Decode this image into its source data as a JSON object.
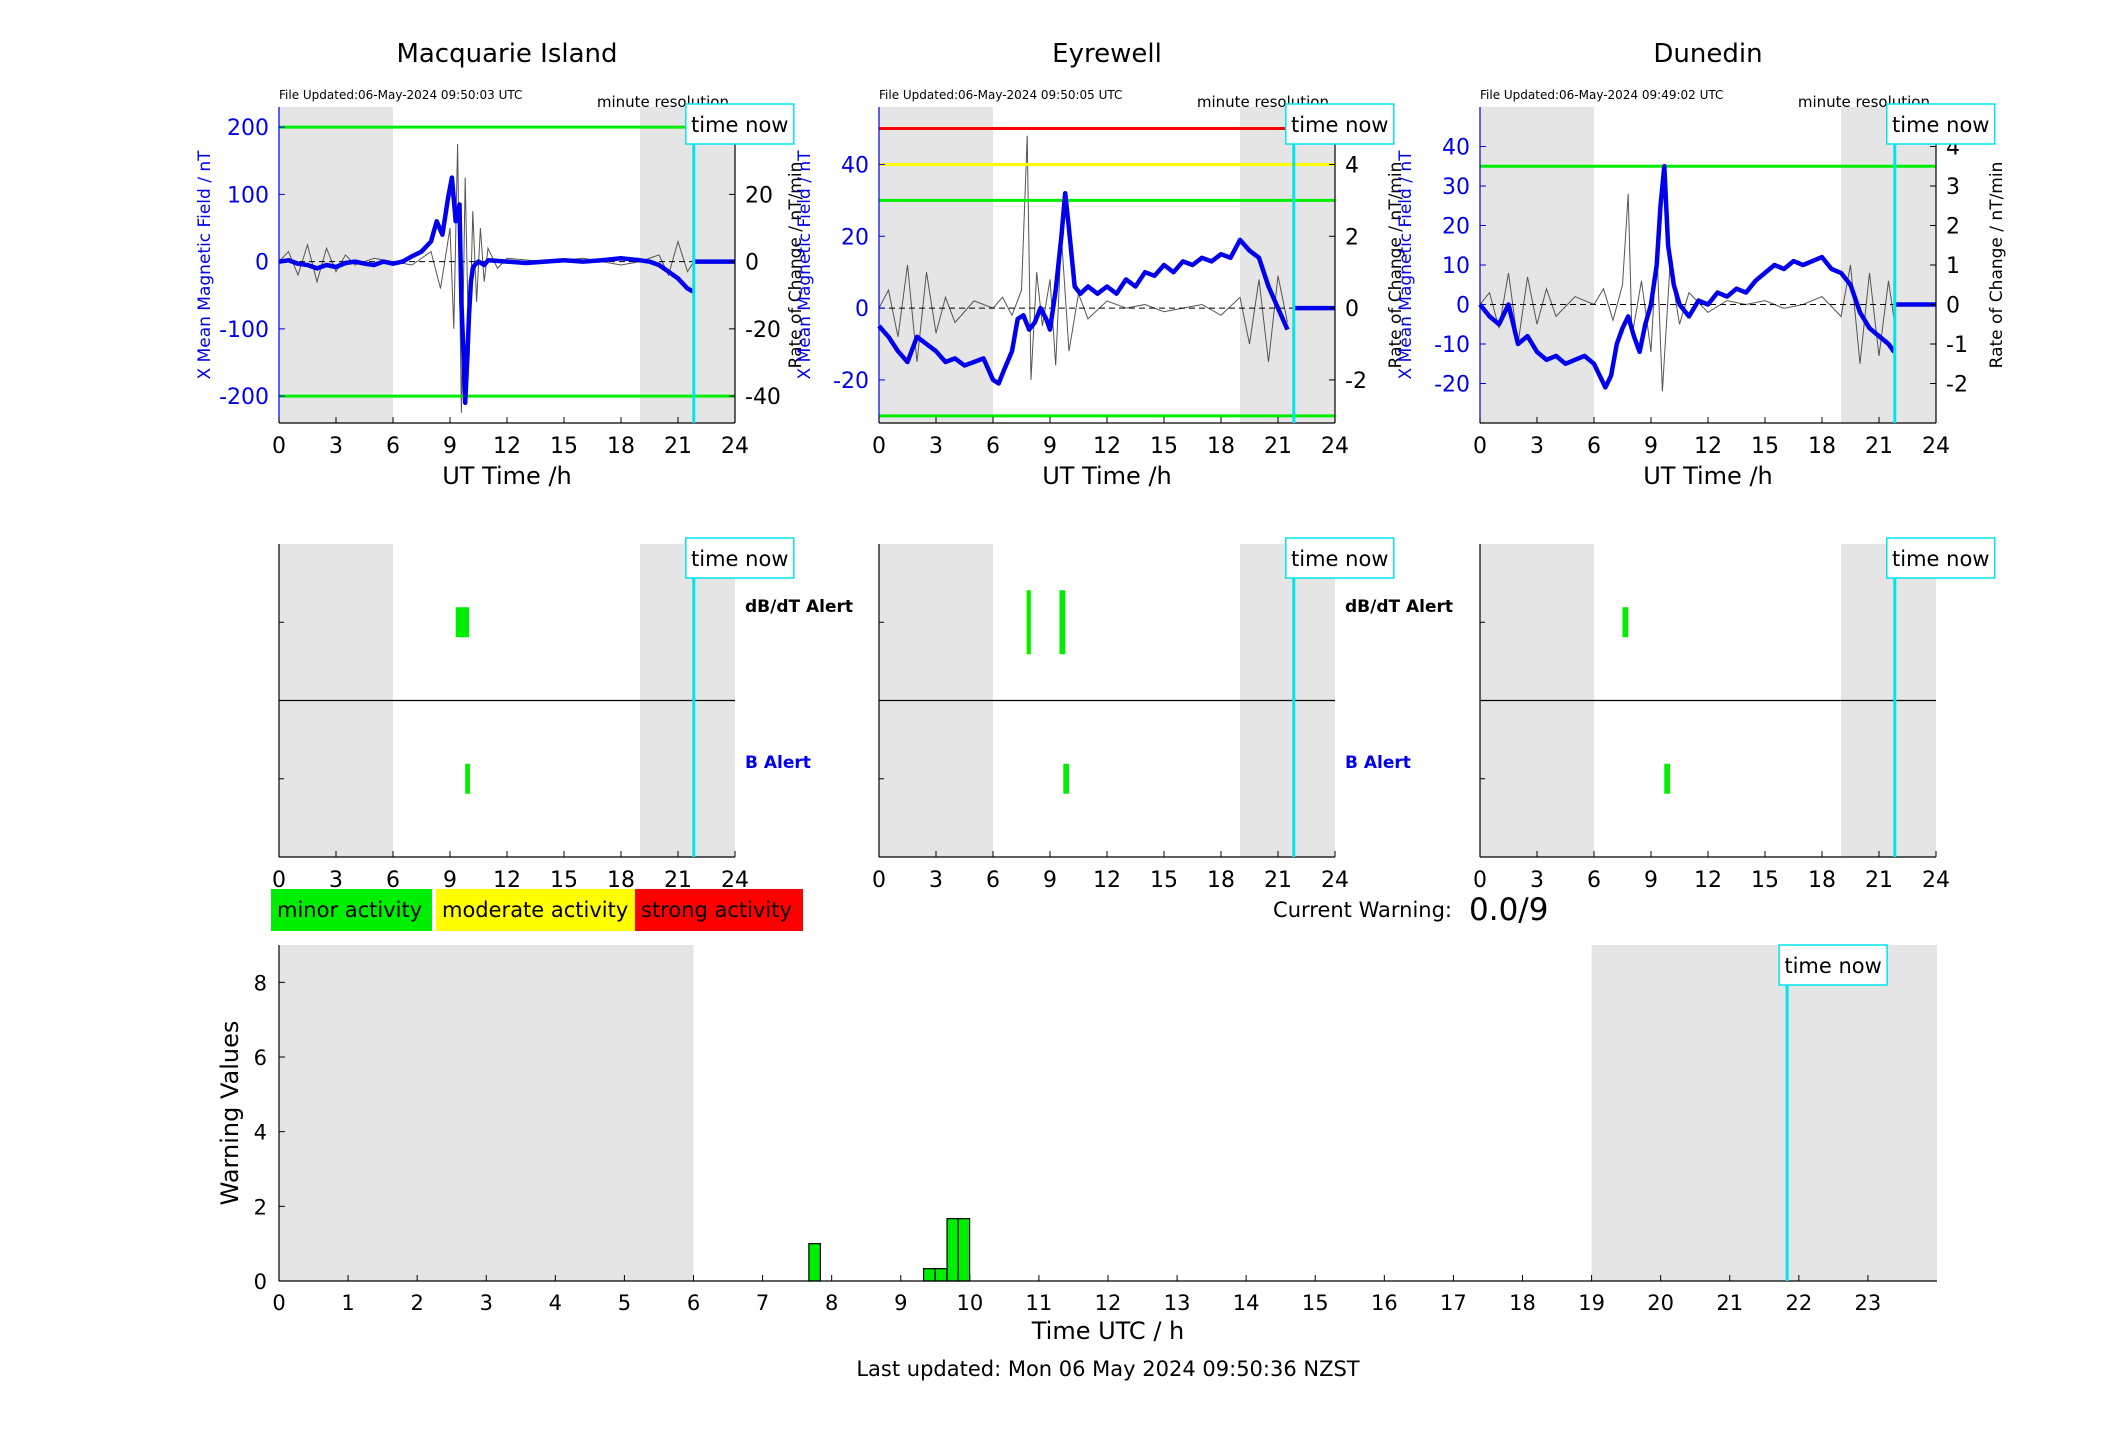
{
  "colors": {
    "shade": "#e5e5e5",
    "field": "#0000ee",
    "rate": "#555555",
    "now": "#00e5ee",
    "green": "#00ee00",
    "yellow": "#ffff00",
    "red": "#ff0000",
    "alert_b": "#0000ee"
  },
  "legend": {
    "minor": "minor activity",
    "moderate": "moderate activity",
    "strong": "strong activity"
  },
  "warning": {
    "label": "Current Warning:",
    "value": "0.0/9"
  },
  "footer": {
    "last_updated": "Last updated: Mon 06 May 2024 09:50:36 NZST"
  },
  "now_label": "time now",
  "alert_labels": {
    "dbdt": "dB/dT Alert",
    "b": "B Alert"
  },
  "chart_data": [
    {
      "type": "line",
      "title": "Macquarie Island",
      "file_updated": "File Updated:06-May-2024 09:50:03 UTC",
      "resolution": "minute resolution",
      "xlabel": "UT Time /h",
      "ylabel_left": "X Mean Magnetic Field / nT",
      "ylabel_right": "Rate of Change / nT/min",
      "xlim": [
        0,
        24
      ],
      "xticks": [
        "0",
        "3",
        "6",
        "9",
        "12",
        "15",
        "18",
        "21",
        "24"
      ],
      "ylim_left": [
        -240,
        230
      ],
      "yticks_left": [
        200,
        100,
        0,
        -100,
        -200
      ],
      "ylim_right": [
        -48,
        46
      ],
      "yticks_right": [
        20,
        0,
        -20,
        -40
      ],
      "thresholds": [
        {
          "value": 200,
          "color": "green"
        },
        {
          "value": -200,
          "color": "green"
        }
      ],
      "shaded": [
        [
          0,
          6
        ],
        [
          19,
          24
        ]
      ],
      "now": 21.83,
      "field": {
        "x": [
          0,
          0.5,
          1,
          1.5,
          2,
          2.5,
          3,
          3.5,
          4,
          4.5,
          5,
          5.5,
          6,
          6.5,
          7,
          7.5,
          8,
          8.3,
          8.6,
          8.9,
          9.1,
          9.3,
          9.5,
          9.6,
          9.7,
          9.8,
          9.9,
          10.0,
          10.1,
          10.2,
          10.3,
          10.5,
          10.8,
          11,
          12,
          13,
          14,
          15,
          16,
          17,
          18,
          19,
          19.5,
          20,
          20.5,
          21,
          21.5,
          21.83
        ],
        "y": [
          0,
          2,
          -3,
          -5,
          -10,
          -5,
          -8,
          -2,
          0,
          -3,
          -5,
          0,
          -3,
          0,
          8,
          15,
          30,
          60,
          40,
          95,
          125,
          60,
          85,
          -60,
          -130,
          -210,
          -150,
          -80,
          -30,
          -10,
          -5,
          0,
          -5,
          2,
          0,
          -2,
          0,
          2,
          0,
          2,
          5,
          2,
          0,
          -5,
          -15,
          -25,
          -40,
          -45
        ]
      },
      "rate": {
        "x": [
          0,
          0.5,
          1,
          1.5,
          2,
          2.5,
          3,
          3.5,
          4,
          5,
          6,
          7,
          8,
          8.5,
          9,
          9.2,
          9.4,
          9.6,
          9.8,
          10,
          10.2,
          10.4,
          10.6,
          10.8,
          11,
          11.5,
          12,
          14,
          16,
          18,
          19,
          20,
          20.5,
          21,
          21.5,
          21.83
        ],
        "y": [
          0,
          3,
          -4,
          5,
          -6,
          4,
          -3,
          2,
          -1,
          1,
          0,
          -1,
          3,
          -8,
          10,
          -20,
          35,
          -45,
          25,
          -30,
          15,
          -12,
          10,
          -6,
          4,
          -2,
          1,
          0,
          1,
          -1,
          0,
          2,
          -4,
          6,
          -3,
          0
        ]
      },
      "after_now": 0
    },
    {
      "type": "line",
      "title": "Eyrewell",
      "file_updated": "File Updated:06-May-2024 09:50:05 UTC",
      "resolution": "minute resolution",
      "xlabel": "UT Time /h",
      "ylabel_left": "X Mean Magnetic Field / nT",
      "ylabel_right": "Rate of Change / nT/min",
      "xlim": [
        0,
        24
      ],
      "xticks": [
        "0",
        "3",
        "6",
        "9",
        "12",
        "15",
        "18",
        "21",
        "24"
      ],
      "ylim_left": [
        -32,
        56
      ],
      "yticks_left": [
        40,
        20,
        0,
        -20
      ],
      "ylim_right": [
        -3.2,
        5.6
      ],
      "yticks_right": [
        4,
        2,
        0,
        -2
      ],
      "thresholds": [
        {
          "value": 50,
          "color": "red"
        },
        {
          "value": 40,
          "color": "yellow"
        },
        {
          "value": 30,
          "color": "green"
        },
        {
          "value": -30,
          "color": "green"
        }
      ],
      "shaded": [
        [
          0,
          6
        ],
        [
          19,
          24
        ]
      ],
      "now": 21.83,
      "field": {
        "x": [
          0,
          0.5,
          1,
          1.5,
          2,
          2.5,
          3,
          3.5,
          4,
          4.5,
          5,
          5.5,
          6,
          6.3,
          6.6,
          7,
          7.3,
          7.6,
          7.9,
          8.2,
          8.5,
          8.8,
          9,
          9.3,
          9.6,
          9.8,
          10,
          10.3,
          10.6,
          11,
          11.5,
          12,
          12.5,
          13,
          13.5,
          14,
          14.5,
          15,
          15.5,
          16,
          16.5,
          17,
          17.5,
          18,
          18.5,
          19,
          19.5,
          20,
          20.5,
          21,
          21.5
        ],
        "y": [
          -5,
          -8,
          -12,
          -15,
          -8,
          -10,
          -12,
          -15,
          -14,
          -16,
          -15,
          -14,
          -20,
          -21,
          -17,
          -12,
          -3,
          -2,
          -6,
          -4,
          0,
          -3,
          -6,
          5,
          20,
          32,
          22,
          6,
          4,
          6,
          4,
          6,
          4,
          8,
          6,
          10,
          9,
          12,
          10,
          13,
          12,
          14,
          13,
          15,
          14,
          19,
          16,
          14,
          6,
          0,
          -6
        ]
      },
      "rate": {
        "x": [
          0,
          0.5,
          1,
          1.5,
          2,
          2.5,
          3,
          3.5,
          4,
          5,
          6,
          6.5,
          7,
          7.5,
          7.8,
          8,
          8.3,
          8.6,
          9,
          9.3,
          9.6,
          10,
          10.5,
          11,
          12,
          13,
          14,
          15,
          16,
          17,
          18,
          19,
          19.5,
          20,
          20.5,
          21,
          21.5
        ],
        "y": [
          0,
          0.5,
          -0.8,
          1.2,
          -1.5,
          1,
          -0.7,
          0.3,
          -0.4,
          0.2,
          0,
          0.3,
          -0.2,
          0.5,
          4.8,
          -2,
          1,
          -0.5,
          0.8,
          -1.6,
          2,
          -1.2,
          0.4,
          -0.3,
          0.2,
          0,
          0.1,
          -0.1,
          0,
          0.1,
          -0.2,
          0.3,
          -1,
          0.8,
          -1.5,
          0.9,
          -0.4
        ]
      },
      "after_now": 0
    },
    {
      "type": "line",
      "title": "Dunedin",
      "file_updated": "File Updated:06-May-2024 09:49:02 UTC",
      "resolution": "minute resolution",
      "xlabel": "UT Time /h",
      "ylabel_left": "X Mean Magnetic Field / nT",
      "ylabel_right": "Rate of Change / nT/min",
      "xlim": [
        0,
        24
      ],
      "xticks": [
        "0",
        "3",
        "6",
        "9",
        "12",
        "15",
        "18",
        "21",
        "24"
      ],
      "ylim_left": [
        -30,
        50
      ],
      "yticks_left": [
        40,
        30,
        20,
        10,
        0,
        -10,
        -20
      ],
      "ylim_right": [
        -3,
        5
      ],
      "yticks_right": [
        4,
        3,
        2,
        1,
        0,
        -1,
        -2
      ],
      "thresholds": [
        {
          "value": 35,
          "color": "green"
        }
      ],
      "shaded": [
        [
          0,
          6
        ],
        [
          19,
          24
        ]
      ],
      "now": 21.83,
      "field": {
        "x": [
          0,
          0.5,
          1,
          1.5,
          2,
          2.5,
          3,
          3.5,
          4,
          4.5,
          5,
          5.5,
          6,
          6.3,
          6.6,
          6.9,
          7.2,
          7.5,
          7.8,
          8.1,
          8.4,
          8.7,
          9,
          9.3,
          9.5,
          9.7,
          9.9,
          10.2,
          10.5,
          11,
          11.5,
          12,
          12.5,
          13,
          13.5,
          14,
          14.5,
          15,
          15.5,
          16,
          16.5,
          17,
          17.5,
          18,
          18.5,
          19,
          19.5,
          20,
          20.5,
          21,
          21.5,
          21.8
        ],
        "y": [
          0,
          -3,
          -5,
          0,
          -10,
          -8,
          -12,
          -14,
          -13,
          -15,
          -14,
          -13,
          -15,
          -18,
          -21,
          -18,
          -10,
          -6,
          -3,
          -8,
          -12,
          -5,
          0,
          10,
          25,
          35,
          15,
          5,
          0,
          -3,
          1,
          0,
          3,
          2,
          4,
          3,
          6,
          8,
          10,
          9,
          11,
          10,
          11,
          12,
          9,
          8,
          5,
          -2,
          -6,
          -8,
          -10,
          -12
        ]
      },
      "rate": {
        "x": [
          0,
          0.5,
          1,
          1.5,
          2,
          2.5,
          3,
          3.5,
          4,
          5,
          6,
          6.5,
          7,
          7.5,
          7.8,
          8,
          8.5,
          9,
          9.3,
          9.6,
          10,
          10.5,
          11,
          12,
          13,
          14,
          15,
          16,
          17,
          18,
          19,
          19.5,
          20,
          20.5,
          21,
          21.5,
          21.8
        ],
        "y": [
          0,
          0.3,
          -0.6,
          0.8,
          -1,
          0.7,
          -0.5,
          0.4,
          -0.3,
          0.2,
          0,
          0.4,
          -0.4,
          0.5,
          2.8,
          -0.8,
          0.6,
          -1.2,
          1.5,
          -2.2,
          1,
          -0.5,
          0.3,
          -0.2,
          0.1,
          0,
          0.1,
          -0.1,
          0,
          0.2,
          -0.3,
          1,
          -1.5,
          0.8,
          -1.3,
          0.6,
          -0.4
        ]
      },
      "after_now": 0
    },
    {
      "type": "alert",
      "station": "Macquarie Island",
      "xlim": [
        0,
        24
      ],
      "xticks": [
        "0",
        "3",
        "6",
        "9",
        "12",
        "15",
        "18",
        "21",
        "24"
      ],
      "shaded": [
        [
          0,
          6
        ],
        [
          19,
          24
        ]
      ],
      "now": 21.83,
      "dbdt": [
        {
          "from": 9.3,
          "to": 10.0,
          "color": "green"
        }
      ],
      "b": [
        {
          "from": 9.8,
          "to": 10.05,
          "color": "green"
        }
      ]
    },
    {
      "type": "alert",
      "station": "Eyrewell",
      "xlim": [
        0,
        24
      ],
      "xticks": [
        "0",
        "3",
        "6",
        "9",
        "12",
        "15",
        "18",
        "21",
        "24"
      ],
      "shaded": [
        [
          0,
          6
        ],
        [
          19,
          24
        ]
      ],
      "now": 21.83,
      "dbdt": [
        {
          "from": 7.75,
          "to": 7.95,
          "color": "yellow"
        },
        {
          "from": 7.78,
          "to": 7.92,
          "color": "green"
        },
        {
          "from": 9.5,
          "to": 9.8,
          "color": "green"
        }
      ],
      "b": [
        {
          "from": 9.7,
          "to": 10.0,
          "color": "green"
        }
      ]
    },
    {
      "type": "alert",
      "station": "Dunedin",
      "xlim": [
        0,
        24
      ],
      "xticks": [
        "0",
        "3",
        "6",
        "9",
        "12",
        "15",
        "18",
        "21",
        "24"
      ],
      "shaded": [
        [
          0,
          6
        ],
        [
          19,
          24
        ]
      ],
      "now": 21.83,
      "dbdt": [
        {
          "from": 7.5,
          "to": 7.8,
          "color": "green"
        }
      ],
      "b": [
        {
          "from": 9.7,
          "to": 10.0,
          "color": "green"
        }
      ]
    },
    {
      "type": "bar",
      "xlabel": "Time UTC / h",
      "ylabel": "Warning Values",
      "xlim": [
        0,
        24
      ],
      "xticks": [
        "0",
        "1",
        "2",
        "3",
        "4",
        "5",
        "6",
        "7",
        "8",
        "9",
        "10",
        "11",
        "12",
        "13",
        "14",
        "15",
        "16",
        "17",
        "18",
        "19",
        "20",
        "21",
        "22",
        "23"
      ],
      "ylim": [
        0,
        9
      ],
      "yticks": [
        0,
        2,
        4,
        6,
        8
      ],
      "shaded": [
        [
          0,
          6
        ],
        [
          19,
          24
        ]
      ],
      "now": 21.83,
      "bar_width": 0.1667,
      "x": [
        7.67,
        9.33,
        9.5,
        9.67,
        9.83
      ],
      "values": [
        1,
        0.33,
        0.33,
        1.67,
        1.67
      ]
    }
  ]
}
